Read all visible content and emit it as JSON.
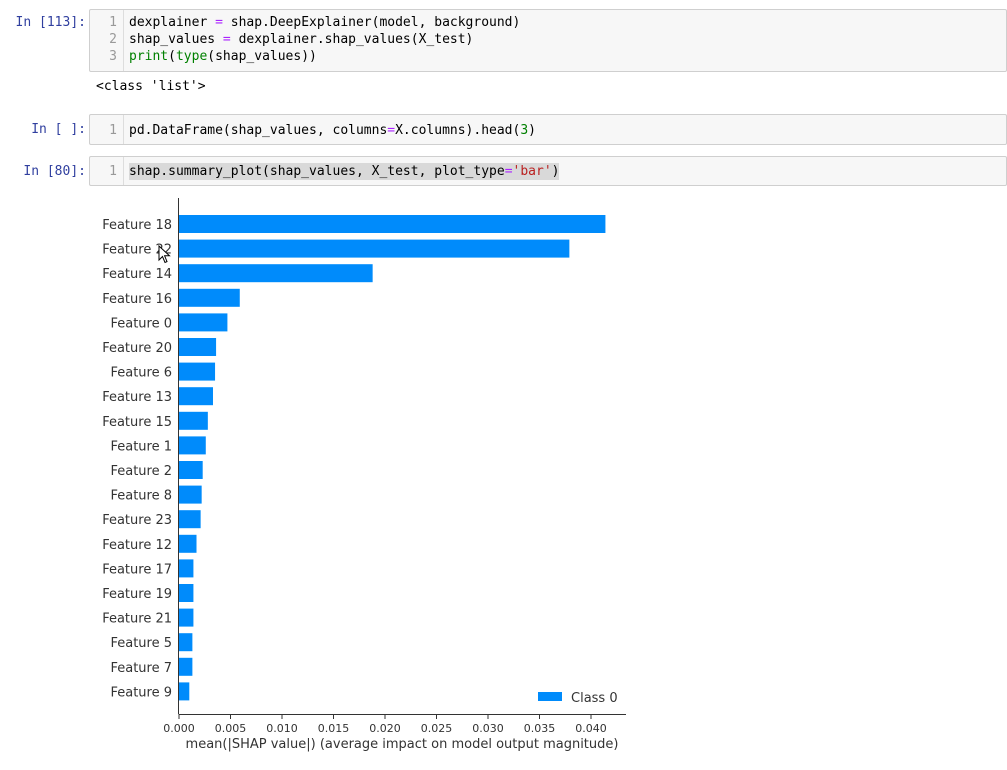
{
  "cells": [
    {
      "prompt": "In [113]:",
      "lines": [
        {
          "no": "1",
          "tokens": [
            {
              "t": "dexplainer "
            },
            {
              "t": "=",
              "c": "op"
            },
            {
              "t": " shap.DeepExplainer(model, background)"
            }
          ]
        },
        {
          "no": "2",
          "tokens": [
            {
              "t": "shap_values "
            },
            {
              "t": "=",
              "c": "op"
            },
            {
              "t": " dexplainer.shap_values(X_test)"
            }
          ]
        },
        {
          "no": "3",
          "tokens": [
            {
              "t": "print",
              "c": "builtin"
            },
            {
              "t": "("
            },
            {
              "t": "type",
              "c": "builtin"
            },
            {
              "t": "(shap_values))"
            }
          ]
        }
      ],
      "output": "<class 'list'>"
    },
    {
      "prompt": "In [ ]:",
      "lines": [
        {
          "no": "1",
          "tokens": [
            {
              "t": "pd.DataFrame(shap_values, columns"
            },
            {
              "t": "=",
              "c": "op"
            },
            {
              "t": "X.columns).head("
            },
            {
              "t": "3",
              "c": "num"
            },
            {
              "t": ")"
            }
          ]
        }
      ]
    },
    {
      "prompt": "In [80]:",
      "lines": [
        {
          "no": "1",
          "selected": true,
          "tokens": [
            {
              "t": "shap.summary_plot(shap_values, X_test, plot_type"
            },
            {
              "t": "=",
              "c": "op"
            },
            {
              "t": "'bar'",
              "c": "str"
            },
            {
              "t": ")"
            }
          ]
        }
      ]
    }
  ],
  "chart_data": {
    "type": "bar",
    "orientation": "horizontal",
    "categories": [
      "Feature 18",
      "Feature 22",
      "Feature 14",
      "Feature 16",
      "Feature 0",
      "Feature 20",
      "Feature 6",
      "Feature 13",
      "Feature 15",
      "Feature 1",
      "Feature 2",
      "Feature 8",
      "Feature 23",
      "Feature 12",
      "Feature 17",
      "Feature 19",
      "Feature 21",
      "Feature 5",
      "Feature 7",
      "Feature 9"
    ],
    "series": [
      {
        "name": "Class 0",
        "color": "#008bfb",
        "values": [
          0.0414,
          0.0379,
          0.0188,
          0.0059,
          0.0047,
          0.0036,
          0.0035,
          0.0033,
          0.0028,
          0.0026,
          0.0023,
          0.0022,
          0.0021,
          0.0017,
          0.0014,
          0.0014,
          0.0014,
          0.0013,
          0.0013,
          0.001
        ]
      }
    ],
    "xlabel": "mean(|SHAP value|) (average impact on model output magnitude)",
    "xticks": [
      "0.000",
      "0.005",
      "0.010",
      "0.015",
      "0.020",
      "0.025",
      "0.030",
      "0.035",
      "0.040"
    ],
    "xlim": [
      0,
      0.0435
    ],
    "legend": "bottom-right"
  },
  "colors": {
    "prompt": "#303f9f",
    "bar": "#008bfb"
  }
}
